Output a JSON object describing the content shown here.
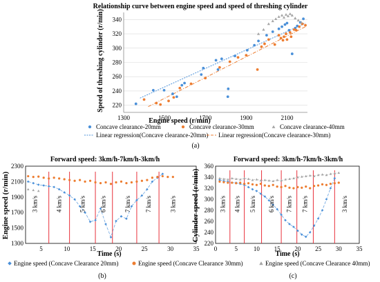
{
  "colors": {
    "blue": "#4a90d9",
    "orange": "#ed7d31",
    "gray": "#a5a5a5",
    "red": "#e8303a",
    "grid": "#d9d9d9"
  },
  "chart_data": [
    {
      "panel": "(a)",
      "type": "scatter",
      "title": "Relationship curve between engine speed and  speed of threshing cylinder",
      "xlabel": "Engine speed (r/min)",
      "ylabel": "Speed of  threshing cylinder (r/min)",
      "xlim": [
        1300,
        2200
      ],
      "ylim": [
        210,
        350
      ],
      "xticks": [
        1300,
        1500,
        1700,
        1900,
        2100
      ],
      "yticks": [
        220,
        240,
        260,
        280,
        300,
        320,
        340
      ],
      "grid": true,
      "legend_position": "bottom",
      "series": [
        {
          "name": "Concave clearance-20mm",
          "color_key": "blue",
          "marker": "circle",
          "points": [
            [
              1360,
              222
            ],
            [
              1445,
              241
            ],
            [
              1498,
              241
            ],
            [
              1540,
              236
            ],
            [
              1560,
              232
            ],
            [
              1585,
              248
            ],
            [
              1598,
              251
            ],
            [
              1680,
              263
            ],
            [
              1690,
              272
            ],
            [
              1752,
              283
            ],
            [
              1762,
              270
            ],
            [
              1780,
              285
            ],
            [
              1810,
              232
            ],
            [
              1812,
              243
            ],
            [
              1845,
              289
            ],
            [
              1905,
              297
            ],
            [
              1940,
              304
            ],
            [
              1960,
              310
            ],
            [
              2000,
              318
            ],
            [
              2030,
              323
            ],
            [
              2060,
              327
            ],
            [
              2075,
              330
            ],
            [
              2090,
              333
            ],
            [
              2100,
              335
            ],
            [
              2110,
              325
            ],
            [
              2125,
              292
            ],
            [
              2140,
              328
            ],
            [
              2150,
              331
            ],
            [
              2165,
              336
            ],
            [
              2180,
              341
            ]
          ]
        },
        {
          "name": "Concave clearance-30mm",
          "color_key": "orange",
          "marker": "circle",
          "points": [
            [
              1400,
              228
            ],
            [
              1460,
              223
            ],
            [
              1480,
              221
            ],
            [
              1520,
              226
            ],
            [
              1545,
              231
            ],
            [
              1575,
              244
            ],
            [
              1630,
              250
            ],
            [
              1700,
              258
            ],
            [
              1770,
              273
            ],
            [
              1820,
              281
            ],
            [
              1860,
              287
            ],
            [
              1900,
              290
            ],
            [
              1955,
              270
            ],
            [
              1975,
              302
            ],
            [
              1990,
              306
            ],
            [
              2010,
              312
            ],
            [
              2040,
              305
            ],
            [
              2060,
              318
            ],
            [
              2070,
              314
            ],
            [
              2080,
              311
            ],
            [
              2085,
              316
            ],
            [
              2095,
              320
            ],
            [
              2100,
              312
            ],
            [
              2115,
              322
            ],
            [
              2120,
              316
            ],
            [
              2135,
              326
            ],
            [
              2145,
              325
            ],
            [
              2160,
              330
            ],
            [
              2175,
              334
            ],
            [
              2190,
              332
            ]
          ]
        },
        {
          "name": "Concave clearance-40mm",
          "color_key": "gray",
          "marker": "triangle",
          "points": [
            [
              1960,
              320
            ],
            [
              1985,
              326
            ],
            [
              2010,
              334
            ],
            [
              2030,
              338
            ],
            [
              2045,
              341
            ],
            [
              2060,
              344
            ],
            [
              2075,
              346
            ],
            [
              2085,
              343
            ],
            [
              2095,
              347
            ],
            [
              2105,
              345
            ],
            [
              2115,
              348
            ],
            [
              2125,
              346
            ],
            [
              2140,
              342
            ],
            [
              2155,
              339
            ],
            [
              2170,
              336
            ]
          ]
        }
      ],
      "regressions": [
        {
          "name": "Linear regression(Concave clearance-20mm)",
          "color_key": "blue",
          "x": [
            1380,
            2190
          ],
          "y": [
            230,
            335
          ]
        },
        {
          "name": "Linear regression(Concave clearance-30mm)",
          "color_key": "orange",
          "x": [
            1420,
            2190
          ],
          "y": [
            218,
            330
          ]
        }
      ]
    },
    {
      "panel": "(b)",
      "type": "scatter",
      "title": "Forward speed: 3km/h-7km/h-3km/h",
      "xlabel": "Time (s)",
      "ylabel": "Engine speed (r/min)",
      "xlim": [
        2,
        35
      ],
      "ylim": [
        1300,
        2300
      ],
      "xticks": [
        5,
        10,
        15,
        20,
        25,
        30,
        35
      ],
      "yticks": [
        1300,
        1500,
        1700,
        1900,
        2100,
        2300
      ],
      "grid": false,
      "legend_position": "bottom",
      "series": [
        {
          "name": "Engine speed (Concave Clearance 20mm)",
          "color_key": "blue",
          "marker": "diamond",
          "points": [
            [
              2.5,
              2100
            ],
            [
              3.5,
              2080
            ],
            [
              4.5,
              2060
            ],
            [
              5.5,
              2050
            ],
            [
              6.5,
              2040
            ],
            [
              7.5,
              2030
            ],
            [
              8.5,
              2000
            ],
            [
              9.5,
              1960
            ],
            [
              10.5,
              1920
            ],
            [
              11.5,
              1870
            ],
            [
              12.5,
              1780
            ],
            [
              13.5,
              1700
            ],
            [
              14.5,
              1580
            ],
            [
              15.5,
              1600
            ],
            [
              16.5,
              1750
            ],
            [
              17.5,
              1550
            ],
            [
              18.5,
              1380
            ],
            [
              19.5,
              1590
            ],
            [
              20.5,
              1650
            ],
            [
              21.5,
              1620
            ],
            [
              22.5,
              1780
            ],
            [
              23.5,
              1860
            ],
            [
              24.5,
              1920
            ],
            [
              25.5,
              2000
            ],
            [
              26.5,
              2100
            ],
            [
              27.5,
              2150
            ],
            [
              28.5,
              2200
            ]
          ]
        },
        {
          "name": "Engine speed (Concave Clearance 30mm)",
          "color_key": "orange",
          "marker": "circle",
          "points": [
            [
              2.5,
              2170
            ],
            [
              3.5,
              2160
            ],
            [
              4.5,
              2165
            ],
            [
              5.5,
              2150
            ],
            [
              6.5,
              2140
            ],
            [
              7.5,
              2150
            ],
            [
              8.5,
              2140
            ],
            [
              9.5,
              2130
            ],
            [
              10.5,
              2120
            ],
            [
              11.5,
              2110
            ],
            [
              12.5,
              2120
            ],
            [
              13.5,
              2100
            ],
            [
              14.5,
              2110
            ],
            [
              15.5,
              2090
            ],
            [
              16.5,
              2080
            ],
            [
              17.5,
              2090
            ],
            [
              18.5,
              2070
            ],
            [
              19.5,
              2090
            ],
            [
              20.5,
              2100
            ],
            [
              21.5,
              2080
            ],
            [
              22.5,
              2090
            ],
            [
              23.5,
              2100
            ],
            [
              24.5,
              2110
            ],
            [
              25.5,
              2120
            ],
            [
              26.5,
              2150
            ],
            [
              27.5,
              2160
            ],
            [
              28.5,
              2170
            ],
            [
              29.5,
              2160
            ],
            [
              30.5,
              2160
            ]
          ]
        },
        {
          "name": "Engine speed (Concave Clearance 40mm)",
          "color_key": "gray",
          "marker": "triangle",
          "points": [
            [
              2.5,
              2000
            ],
            [
              3.5,
              1990
            ],
            [
              4.5,
              1980
            ]
          ]
        }
      ],
      "dividers": [
        6.5,
        10.5,
        15.5,
        18.8,
        23.5,
        27.8
      ],
      "regions": [
        {
          "label": "3 km/s",
          "x": 3.8
        },
        {
          "label": "4 km/s",
          "x": 8.5
        },
        {
          "label": "5 km/s",
          "x": 13.0
        },
        {
          "label": "6 km/s",
          "x": 17.0
        },
        {
          "label": "7 km/s",
          "x": 21.8
        },
        {
          "label": "7 km/s",
          "x": 25.8
        },
        {
          "label": "3 km/s",
          "x": 30.5
        }
      ]
    },
    {
      "panel": "(c)",
      "type": "scatter",
      "title": "Forward speed: 3km/h-7km/h-3km/h",
      "xlabel": "Time (s)",
      "ylabel": "Cylinder speed (r/min)",
      "xlim": [
        0,
        35
      ],
      "ylim": [
        220,
        360
      ],
      "xticks": [
        0,
        5,
        10,
        15,
        20,
        25,
        30,
        35
      ],
      "yticks": [
        220,
        240,
        260,
        280,
        300,
        320,
        340,
        360
      ],
      "grid": false,
      "legend_position": "bottom",
      "series": [
        {
          "name": "",
          "color_key": "blue",
          "marker": "diamond",
          "points": [
            [
              1,
              335
            ],
            [
              2,
              333
            ],
            [
              3,
              332
            ],
            [
              4,
              330
            ],
            [
              5,
              330
            ],
            [
              6,
              328
            ],
            [
              7,
              326
            ],
            [
              8,
              322
            ],
            [
              9,
              318
            ],
            [
              10,
              315
            ],
            [
              11,
              310
            ],
            [
              12,
              305
            ],
            [
              13,
              298
            ],
            [
              14,
              290
            ],
            [
              15,
              282
            ],
            [
              16,
              272
            ],
            [
              17,
              262
            ],
            [
              18,
              255
            ],
            [
              19,
              250
            ],
            [
              20,
              243
            ],
            [
              21,
              236
            ],
            [
              22,
              232
            ],
            [
              23,
              240
            ],
            [
              24,
              252
            ],
            [
              25,
              265
            ],
            [
              26,
              280
            ],
            [
              27,
              300
            ],
            [
              28,
              320
            ],
            [
              29,
              338
            ]
          ]
        },
        {
          "name": "",
          "color_key": "orange",
          "marker": "circle",
          "points": [
            [
              1,
              332
            ],
            [
              2,
              331
            ],
            [
              3,
              330
            ],
            [
              4,
              330
            ],
            [
              5,
              329
            ],
            [
              6,
              330
            ],
            [
              7,
              328
            ],
            [
              8,
              329
            ],
            [
              9,
              327
            ],
            [
              10,
              326
            ],
            [
              11,
              328
            ],
            [
              12,
              325
            ],
            [
              13,
              324
            ],
            [
              14,
              326
            ],
            [
              15,
              323
            ],
            [
              16,
              322
            ],
            [
              17,
              324
            ],
            [
              18,
              321
            ],
            [
              19,
              320
            ],
            [
              20,
              322
            ],
            [
              21,
              321
            ],
            [
              22,
              323
            ],
            [
              23,
              320
            ],
            [
              24,
              324
            ],
            [
              25,
              325
            ],
            [
              26,
              327
            ],
            [
              27,
              326
            ],
            [
              28,
              328
            ],
            [
              29,
              329
            ],
            [
              30,
              330
            ]
          ]
        },
        {
          "name": "",
          "color_key": "gray",
          "marker": "triangle",
          "points": [
            [
              1,
              338
            ],
            [
              2,
              337
            ],
            [
              3,
              336
            ],
            [
              4,
              338
            ],
            [
              5,
              337
            ],
            [
              6,
              336
            ],
            [
              7,
              338
            ],
            [
              8,
              337
            ],
            [
              9,
              335
            ],
            [
              10,
              336
            ],
            [
              11,
              334
            ],
            [
              12,
              335
            ],
            [
              13,
              334
            ],
            [
              14,
              333
            ],
            [
              15,
              335
            ],
            [
              16,
              334
            ],
            [
              17,
              336
            ],
            [
              18,
              337
            ],
            [
              19,
              338
            ],
            [
              20,
              340
            ],
            [
              21,
              341
            ],
            [
              22,
              342
            ],
            [
              23,
              343
            ],
            [
              24,
              342
            ],
            [
              25,
              344
            ],
            [
              26,
              345
            ],
            [
              27,
              344
            ],
            [
              28,
              346
            ],
            [
              29,
              347
            ],
            [
              30,
              348
            ]
          ]
        }
      ],
      "dividers": [
        3.5,
        7.0,
        11.2,
        16.0,
        19.8,
        23.8,
        29.0
      ],
      "regions": [
        {
          "label": "3 km/s",
          "x": 1.8
        },
        {
          "label": "4 km/s",
          "x": 5.3
        },
        {
          "label": "5 km/s",
          "x": 9.1
        },
        {
          "label": "6 km/s",
          "x": 13.6
        },
        {
          "label": "7 km/s",
          "x": 17.9
        },
        {
          "label": "7 km/s",
          "x": 21.8
        },
        {
          "label": "3 km/s",
          "x": 31.5
        }
      ]
    }
  ]
}
